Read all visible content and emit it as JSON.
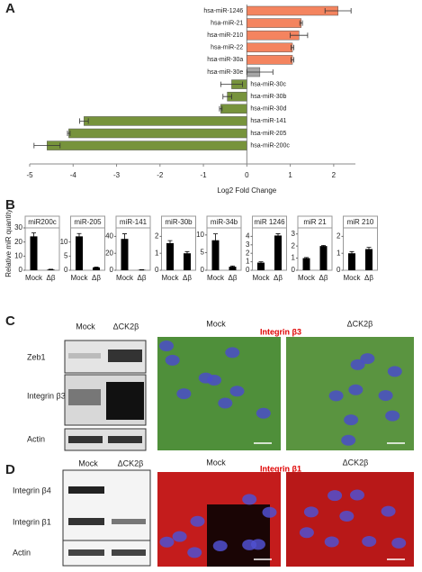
{
  "chart_data": [
    {
      "type": "bar",
      "orientation": "horizontal",
      "xlabel": "Log2 Fold Change",
      "categories": [
        "hsa-miR-1246",
        "hsa-miR-21",
        "hsa-miR-210",
        "hsa-miR-22",
        "hsa-miR-30a",
        "hsa-miR-30e",
        "hsa-miR-30c",
        "hsa-miR-30b",
        "hsa-miR-30d",
        "hsa-miR-141",
        "hsa-miR-205",
        "hsa-miR-200c"
      ],
      "values": [
        2.1,
        1.25,
        1.2,
        1.05,
        1.05,
        0.3,
        -0.35,
        -0.45,
        -0.6,
        -3.75,
        -4.1,
        -4.6
      ],
      "errors": [
        0.3,
        0.03,
        0.2,
        0.03,
        0.03,
        0.3,
        0.25,
        0.1,
        0.03,
        0.1,
        0.03,
        0.3
      ],
      "colors": [
        "#f4845f",
        "#f4845f",
        "#f4845f",
        "#f4845f",
        "#f4845f",
        "#a6a6a6",
        "#77933c",
        "#77933c",
        "#77933c",
        "#77933c",
        "#77933c",
        "#77933c"
      ],
      "xlim": [
        -5,
        2.5
      ],
      "xticks": [
        -5,
        -4,
        -3,
        -2,
        -1,
        0,
        1,
        2
      ]
    },
    {
      "type": "bar",
      "orientation": "vertical",
      "title": "miR200c",
      "categories": [
        "Mock",
        "Δβ"
      ],
      "values": [
        24,
        0.5
      ],
      "errors": [
        2.5,
        0.2
      ],
      "color": "#000000",
      "ylim": [
        0,
        30
      ],
      "yticks": [
        0,
        10,
        20,
        30
      ]
    },
    {
      "type": "bar",
      "orientation": "vertical",
      "title": "miR-205",
      "categories": [
        "Mock",
        "Δβ"
      ],
      "values": [
        12,
        1
      ],
      "errors": [
        1,
        0.1
      ],
      "color": "#000000",
      "ylim": [
        0,
        15
      ],
      "yticks": [
        0,
        5,
        10
      ]
    },
    {
      "type": "bar",
      "orientation": "vertical",
      "title": "miR-141",
      "categories": [
        "Mock",
        "Δβ"
      ],
      "values": [
        37,
        0.5
      ],
      "errors": [
        6,
        0.2
      ],
      "color": "#000000",
      "ylim": [
        0,
        50
      ],
      "yticks": [
        0,
        20,
        40
      ]
    },
    {
      "type": "bar",
      "orientation": "vertical",
      "title": "miR-30b",
      "categories": [
        "Mock",
        "Δβ"
      ],
      "values": [
        1.6,
        1.0
      ],
      "errors": [
        0.15,
        0.1
      ],
      "color": "#000000",
      "ylim": [
        0,
        2.5
      ],
      "yticks": [
        0,
        1,
        2
      ]
    },
    {
      "type": "bar",
      "orientation": "vertical",
      "title": "miR-34b",
      "categories": [
        "Mock",
        "Δβ"
      ],
      "values": [
        8.5,
        1
      ],
      "errors": [
        1.8,
        0.2
      ],
      "color": "#000000",
      "ylim": [
        0,
        12
      ],
      "yticks": [
        0,
        5,
        10
      ]
    },
    {
      "type": "bar",
      "orientation": "vertical",
      "title": "miR 1246",
      "categories": [
        "Mock",
        "Δβ"
      ],
      "values": [
        0.9,
        4.1
      ],
      "errors": [
        0.1,
        0.2
      ],
      "color": "#000000",
      "ylim": [
        0,
        5
      ],
      "yticks": [
        0,
        1,
        2,
        3,
        4
      ]
    },
    {
      "type": "bar",
      "orientation": "vertical",
      "title": "miR 21",
      "categories": [
        "Mock",
        "Δβ"
      ],
      "values": [
        1,
        2
      ],
      "errors": [
        0.05,
        0.05
      ],
      "color": "#000000",
      "ylim": [
        0,
        3.5
      ],
      "yticks": [
        0,
        1,
        2,
        3
      ]
    },
    {
      "type": "bar",
      "orientation": "vertical",
      "title": "miR 210",
      "categories": [
        "Mock",
        "Δβ"
      ],
      "values": [
        1,
        1.25
      ],
      "errors": [
        0.1,
        0.1
      ],
      "color": "#000000",
      "ylim": [
        0,
        2.5
      ],
      "yticks": [
        0,
        1,
        2
      ]
    }
  ],
  "panel_labels": [
    "A",
    "B",
    "C",
    "D"
  ],
  "panel_b_ylabel": "Relative miR quantity",
  "panel_c": {
    "blot_headers": [
      "Mock",
      "ΔCK2β"
    ],
    "blot_rows": [
      "Zeb1",
      "Integrin β3",
      "Actin"
    ],
    "image_headers": [
      "Mock",
      "ΔCK2β"
    ],
    "stain": "Integrin β3"
  },
  "panel_d": {
    "blot_headers": [
      "Mock",
      "ΔCK2β"
    ],
    "blot_rows": [
      "Integrin β4",
      "Integrin β1",
      "Actin"
    ],
    "image_headers": [
      "Mock",
      "ΔCK2β"
    ],
    "stain": "Integrin β1"
  }
}
